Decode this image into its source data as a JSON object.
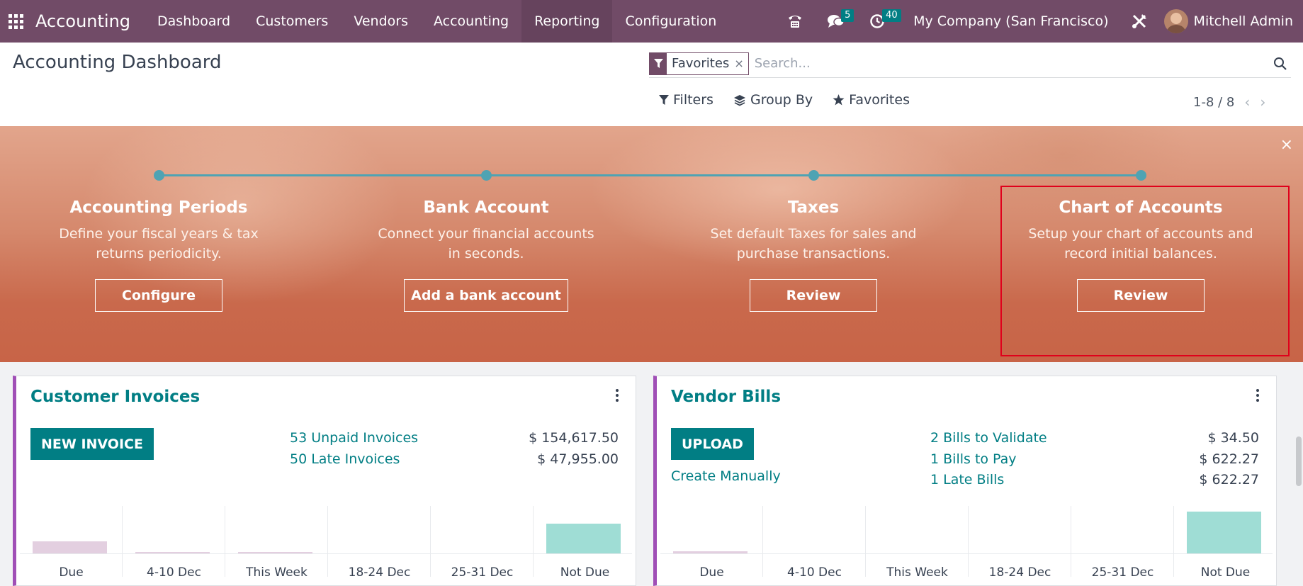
{
  "navbar": {
    "app_title": "Accounting",
    "menu": [
      {
        "label": "Dashboard"
      },
      {
        "label": "Customers"
      },
      {
        "label": "Vendors"
      },
      {
        "label": "Accounting"
      },
      {
        "label": "Reporting"
      },
      {
        "label": "Configuration"
      }
    ],
    "messages_count": "5",
    "activities_count": "40",
    "company": "My Company (San Francisco)",
    "user": "Mitchell Admin"
  },
  "control_panel": {
    "title": "Accounting Dashboard",
    "facet_label": "Favorites",
    "facet_remove": "×",
    "search_placeholder": "Search...",
    "filters_label": "Filters",
    "group_by_label": "Group By",
    "favorites_label": "Favorites",
    "pager": "1-8 / 8",
    "pager_prev": "‹",
    "pager_next": "›"
  },
  "onboarding": {
    "close": "×",
    "steps": [
      {
        "title": "Accounting Periods",
        "description": "Define your fiscal years & tax returns periodicity.",
        "button": "Configure"
      },
      {
        "title": "Bank Account",
        "description": "Connect your financial accounts in seconds.",
        "button": "Add a bank account"
      },
      {
        "title": "Taxes",
        "description": "Set default Taxes for sales and purchase transactions.",
        "button": "Review"
      },
      {
        "title": "Chart of Accounts",
        "description": "Setup your chart of accounts and record initial balances.",
        "button": "Review"
      }
    ]
  },
  "customer_invoices": {
    "title": "Customer Invoices",
    "button": "NEW INVOICE",
    "stats": [
      {
        "label": "53 Unpaid Invoices",
        "value": "$ 154,617.50"
      },
      {
        "label": "50 Late Invoices",
        "value": "$ 47,955.00"
      }
    ],
    "graph_labels": [
      "Due",
      "4-10 Dec",
      "This Week",
      "18-24 Dec",
      "25-31 Dec",
      "Not Due"
    ],
    "graph_values": [
      0.28,
      0.02,
      0.02,
      0,
      0,
      0.68
    ],
    "colors": {
      "past": "#e3cfe0",
      "future": "#9fddd5"
    }
  },
  "vendor_bills": {
    "title": "Vendor Bills",
    "button": "UPLOAD",
    "secondary": "Create Manually",
    "stats": [
      {
        "label": "2 Bills to Validate",
        "value": "$ 34.50"
      },
      {
        "label": "1 Bills to Pay",
        "value": "$ 622.27"
      },
      {
        "label": "1 Late Bills",
        "value": "$ 622.27"
      }
    ],
    "graph_labels": [
      "Due",
      "4-10 Dec",
      "This Week",
      "18-24 Dec",
      "25-31 Dec",
      "Not Due"
    ],
    "graph_values": [
      0.05,
      0,
      0,
      0,
      0,
      0.95
    ],
    "colors": {
      "past": "#e3cfe0",
      "future": "#9fddd5"
    }
  }
}
